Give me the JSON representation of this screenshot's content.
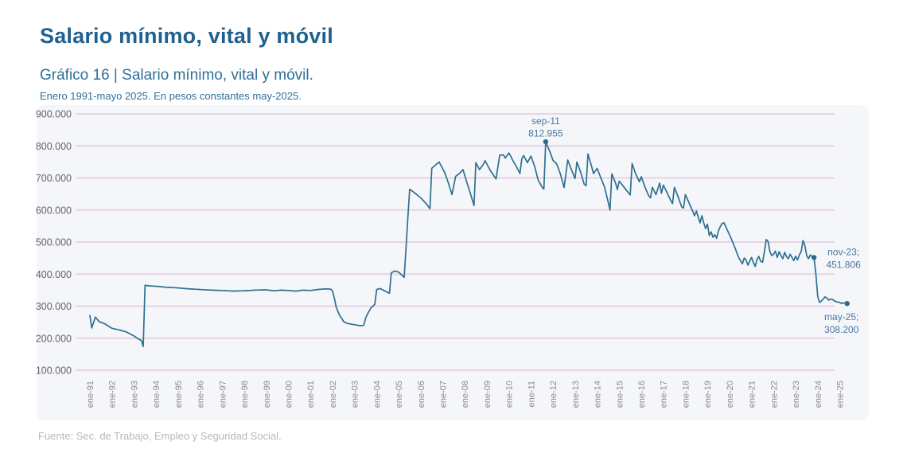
{
  "header": {
    "title": "Salario mínimo, vital y móvil",
    "subtitle": "Gráfico 16 | Salario mínimo, vital y móvil.",
    "period_note": "Enero 1991-mayo 2025. En pesos constantes may-2025."
  },
  "footer": {
    "source": "Fuente: Sec. de Trabajo, Empleo y Seguridad Social."
  },
  "colors": {
    "title": "#1e6190",
    "subtitle": "#2e7099",
    "panel_background": "#f5f6fa",
    "gridline": "#e7d3e3",
    "line": "#2e7091",
    "annotation_text": "#4a779f",
    "y_tick_text": "#63636d",
    "x_tick_text": "#8a8a90",
    "source_text": "#b8b8bc"
  },
  "chart_data": {
    "type": "line",
    "title": "Salario mínimo, vital y móvil",
    "subtitle": "Enero 1991-mayo 2025. En pesos constantes may-2025",
    "unit": "pesos constantes may-2025",
    "x_frequency": "monthly",
    "x_range": [
      "ene-91",
      "may-25"
    ],
    "months_total": 413,
    "ylim": [
      100000,
      900000
    ],
    "grid": true,
    "legend_position": "none",
    "y_tick_labels": [
      "900.000",
      "800.000",
      "700.000",
      "600.000",
      "500.000",
      "400.000",
      "300.000",
      "200.000",
      "100.000"
    ],
    "y_tick_values": [
      900000,
      800000,
      700000,
      600000,
      500000,
      400000,
      300000,
      200000,
      100000
    ],
    "x_tick_labels": [
      "ene-91",
      "ene-92",
      "ene-93",
      "ene-94",
      "ene-95",
      "ene-96",
      "ene-97",
      "ene-98",
      "ene-99",
      "ene-00",
      "ene-01",
      "ene-02",
      "ene-03",
      "ene-04",
      "ene-05",
      "ene-06",
      "ene-07",
      "ene-08",
      "ene-09",
      "ene-10",
      "ene-11",
      "ene-12",
      "ene-13",
      "ene-14",
      "ene-15",
      "ene-16",
      "ene-17",
      "ene-18",
      "ene-19",
      "ene-20",
      "ene-21",
      "ene-22",
      "ene-23",
      "ene-24",
      "ene-25"
    ],
    "series": [
      {
        "name": "Salario mínimo, vital y móvil real",
        "interpolation": "linear-monthly",
        "anchors": [
          [
            0,
            271000
          ],
          [
            1,
            232000
          ],
          [
            3,
            266000
          ],
          [
            5,
            252000
          ],
          [
            8,
            245000
          ],
          [
            12,
            231000
          ],
          [
            16,
            226000
          ],
          [
            20,
            219000
          ],
          [
            24,
            207000
          ],
          [
            26,
            199000
          ],
          [
            28,
            193000
          ],
          [
            29,
            174000
          ],
          [
            30,
            365000
          ],
          [
            33,
            363000
          ],
          [
            36,
            362000
          ],
          [
            42,
            359000
          ],
          [
            48,
            357000
          ],
          [
            54,
            354000
          ],
          [
            60,
            352000
          ],
          [
            66,
            350000
          ],
          [
            72,
            349000
          ],
          [
            78,
            347000
          ],
          [
            84,
            348000
          ],
          [
            90,
            350000
          ],
          [
            96,
            351000
          ],
          [
            100,
            348000
          ],
          [
            104,
            350000
          ],
          [
            108,
            349000
          ],
          [
            112,
            347000
          ],
          [
            116,
            350000
          ],
          [
            120,
            349000
          ],
          [
            124,
            352000
          ],
          [
            128,
            354000
          ],
          [
            131,
            353000
          ],
          [
            132,
            348000
          ],
          [
            133,
            325000
          ],
          [
            134,
            298000
          ],
          [
            135,
            282000
          ],
          [
            136,
            270000
          ],
          [
            137,
            262000
          ],
          [
            138,
            252000
          ],
          [
            139,
            249000
          ],
          [
            140,
            246000
          ],
          [
            142,
            244000
          ],
          [
            144,
            242000
          ],
          [
            146,
            240000
          ],
          [
            148,
            239000
          ],
          [
            149,
            240000
          ],
          [
            150,
            262000
          ],
          [
            151,
            275000
          ],
          [
            152,
            285000
          ],
          [
            153,
            295000
          ],
          [
            154,
            300000
          ],
          [
            155,
            306000
          ],
          [
            156,
            352000
          ],
          [
            158,
            355000
          ],
          [
            160,
            349000
          ],
          [
            162,
            343000
          ],
          [
            163,
            340000
          ],
          [
            164,
            404000
          ],
          [
            166,
            410000
          ],
          [
            168,
            406000
          ],
          [
            170,
            395000
          ],
          [
            171,
            390000
          ],
          [
            172,
            480000
          ],
          [
            173,
            575000
          ],
          [
            174,
            665000
          ],
          [
            177,
            652000
          ],
          [
            180,
            638000
          ],
          [
            183,
            620000
          ],
          [
            185,
            604000
          ],
          [
            186,
            730000
          ],
          [
            188,
            740000
          ],
          [
            190,
            750000
          ],
          [
            193,
            718000
          ],
          [
            195,
            685000
          ],
          [
            197,
            648000
          ],
          [
            199,
            705000
          ],
          [
            201,
            714000
          ],
          [
            203,
            726000
          ],
          [
            206,
            670000
          ],
          [
            209,
            614000
          ],
          [
            210,
            748000
          ],
          [
            212,
            726000
          ],
          [
            214,
            742000
          ],
          [
            215,
            754000
          ],
          [
            218,
            722000
          ],
          [
            221,
            697000
          ],
          [
            223,
            771000
          ],
          [
            225,
            772000
          ],
          [
            226,
            762000
          ],
          [
            228,
            778000
          ],
          [
            230,
            756000
          ],
          [
            232,
            736000
          ],
          [
            234,
            714000
          ],
          [
            235,
            760000
          ],
          [
            236,
            770000
          ],
          [
            238,
            748000
          ],
          [
            240,
            768000
          ],
          [
            242,
            736000
          ],
          [
            244,
            692000
          ],
          [
            246,
            672000
          ],
          [
            247,
            665000
          ],
          [
            248,
            812955
          ],
          [
            250,
            786000
          ],
          [
            252,
            755000
          ],
          [
            254,
            744000
          ],
          [
            256,
            712000
          ],
          [
            258,
            670000
          ],
          [
            260,
            756000
          ],
          [
            262,
            726000
          ],
          [
            264,
            698000
          ],
          [
            265,
            750000
          ],
          [
            267,
            718000
          ],
          [
            269,
            680000
          ],
          [
            270,
            676000
          ],
          [
            271,
            775000
          ],
          [
            273,
            736000
          ],
          [
            274,
            714000
          ],
          [
            276,
            730000
          ],
          [
            278,
            700000
          ],
          [
            280,
            672000
          ],
          [
            282,
            625000
          ],
          [
            283,
            600000
          ],
          [
            284,
            713000
          ],
          [
            286,
            684000
          ],
          [
            287,
            664000
          ],
          [
            288,
            690000
          ],
          [
            290,
            676000
          ],
          [
            292,
            661000
          ],
          [
            294,
            647000
          ],
          [
            295,
            745000
          ],
          [
            297,
            712000
          ],
          [
            299,
            688000
          ],
          [
            300,
            704000
          ],
          [
            302,
            672000
          ],
          [
            304,
            645000
          ],
          [
            305,
            638000
          ],
          [
            306,
            671000
          ],
          [
            308,
            648000
          ],
          [
            310,
            684000
          ],
          [
            311,
            652000
          ],
          [
            312,
            678000
          ],
          [
            314,
            655000
          ],
          [
            316,
            630000
          ],
          [
            317,
            620000
          ],
          [
            318,
            671000
          ],
          [
            320,
            642000
          ],
          [
            322,
            610000
          ],
          [
            323,
            606000
          ],
          [
            324,
            648000
          ],
          [
            326,
            622000
          ],
          [
            328,
            596000
          ],
          [
            329,
            582000
          ],
          [
            330,
            597000
          ],
          [
            331,
            578000
          ],
          [
            332,
            560000
          ],
          [
            333,
            582000
          ],
          [
            334,
            560000
          ],
          [
            335,
            542000
          ],
          [
            336,
            556000
          ],
          [
            337,
            520000
          ],
          [
            338,
            532000
          ],
          [
            339,
            515000
          ],
          [
            340,
            523000
          ],
          [
            341,
            512000
          ],
          [
            342,
            535000
          ],
          [
            343,
            548000
          ],
          [
            344,
            558000
          ],
          [
            345,
            560000
          ],
          [
            347,
            535000
          ],
          [
            349,
            510000
          ],
          [
            351,
            482000
          ],
          [
            353,
            452000
          ],
          [
            355,
            432000
          ],
          [
            356,
            450000
          ],
          [
            357,
            444000
          ],
          [
            358,
            428000
          ],
          [
            359,
            440000
          ],
          [
            360,
            452000
          ],
          [
            361,
            436000
          ],
          [
            362,
            424000
          ],
          [
            363,
            446000
          ],
          [
            364,
            455000
          ],
          [
            365,
            440000
          ],
          [
            366,
            437000
          ],
          [
            367,
            470000
          ],
          [
            368,
            508000
          ],
          [
            369,
            502000
          ],
          [
            370,
            470000
          ],
          [
            371,
            458000
          ],
          [
            372,
            462000
          ],
          [
            373,
            472000
          ],
          [
            374,
            452000
          ],
          [
            375,
            470000
          ],
          [
            376,
            458000
          ],
          [
            377,
            448000
          ],
          [
            378,
            468000
          ],
          [
            379,
            455000
          ],
          [
            380,
            448000
          ],
          [
            381,
            462000
          ],
          [
            382,
            452000
          ],
          [
            383,
            442000
          ],
          [
            384,
            456000
          ],
          [
            385,
            444000
          ],
          [
            386,
            460000
          ],
          [
            387,
            470000
          ],
          [
            388,
            505000
          ],
          [
            389,
            490000
          ],
          [
            390,
            458000
          ],
          [
            391,
            448000
          ],
          [
            392,
            460000
          ],
          [
            393,
            455000
          ],
          [
            394,
            451806
          ],
          [
            395,
            400000
          ],
          [
            396,
            330000
          ],
          [
            397,
            312000
          ],
          [
            398,
            316000
          ],
          [
            399,
            322000
          ],
          [
            400,
            329000
          ],
          [
            401,
            325000
          ],
          [
            402,
            319000
          ],
          [
            403,
            322000
          ],
          [
            404,
            321000
          ],
          [
            405,
            317000
          ],
          [
            406,
            314000
          ],
          [
            407,
            313000
          ],
          [
            408,
            312000
          ],
          [
            409,
            308000
          ],
          [
            410,
            311000
          ],
          [
            411,
            309000
          ],
          [
            412,
            308200
          ]
        ]
      }
    ],
    "annotations": [
      {
        "id": "peak",
        "line1": "sep-11",
        "line2": "812.955",
        "month": 248,
        "value": 812955,
        "placement": "above"
      },
      {
        "id": "pre-crash",
        "line1": "nov-23;",
        "line2": "451.806",
        "month": 394,
        "value": 451806,
        "placement": "right"
      },
      {
        "id": "last",
        "line1": "may-25;",
        "line2": "308.200",
        "month": 412,
        "value": 308200,
        "placement": "below"
      }
    ]
  }
}
